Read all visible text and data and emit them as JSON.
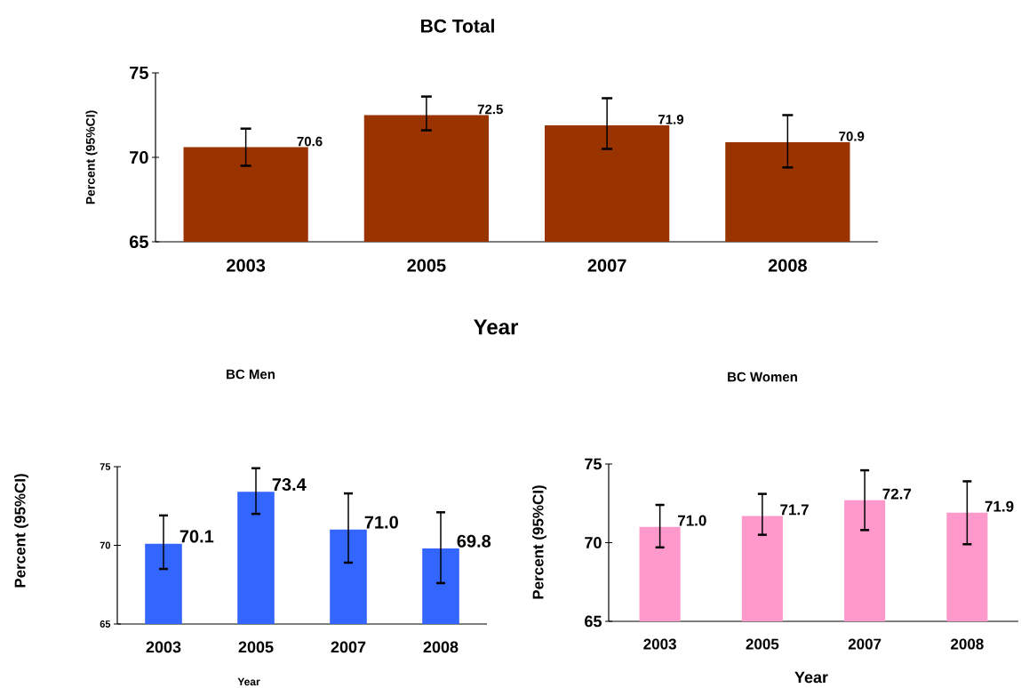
{
  "chart_data": [
    {
      "type": "bar",
      "title": "BC Total",
      "xlabel": "Year",
      "ylabel": "Percent (95%CI)",
      "categories": [
        "2003",
        "2005",
        "2007",
        "2008"
      ],
      "values": [
        70.6,
        72.5,
        71.9,
        70.9
      ],
      "value_labels": [
        "70.6",
        "72.5",
        "71.9",
        "70.9"
      ],
      "errors": [
        [
          69.5,
          71.7
        ],
        [
          71.6,
          73.6
        ],
        [
          70.5,
          73.5
        ],
        [
          69.4,
          72.5
        ]
      ],
      "color": "#993300",
      "ylim": [
        65,
        75
      ],
      "yticks": [
        65,
        70,
        75
      ]
    },
    {
      "type": "bar",
      "title": "BC Men",
      "xlabel": "Year",
      "ylabel": "Percent (95%CI)",
      "categories": [
        "2003",
        "2005",
        "2007",
        "2008"
      ],
      "values": [
        70.1,
        73.4,
        71.0,
        69.8
      ],
      "value_labels": [
        "70.1",
        "73.4",
        "71.0",
        "69.8"
      ],
      "errors": [
        [
          68.5,
          71.9
        ],
        [
          72.0,
          74.9
        ],
        [
          68.9,
          73.3
        ],
        [
          67.6,
          72.1
        ]
      ],
      "color": "#3366ff",
      "ylim": [
        65,
        75
      ],
      "yticks": [
        65,
        70,
        75
      ]
    },
    {
      "type": "bar",
      "title": "BC Women",
      "xlabel": "Year",
      "ylabel": "Percent (95%CI)",
      "categories": [
        "2003",
        "2005",
        "2007",
        "2008"
      ],
      "values": [
        71.0,
        71.7,
        72.7,
        71.9
      ],
      "value_labels": [
        "71.0",
        "71.7",
        "72.7",
        "71.9"
      ],
      "errors": [
        [
          69.7,
          72.4
        ],
        [
          70.5,
          73.1
        ],
        [
          70.8,
          74.6
        ],
        [
          69.9,
          73.9
        ]
      ],
      "color": "#ff99cc",
      "ylim": [
        65,
        75
      ],
      "yticks": [
        65,
        70,
        75
      ]
    }
  ]
}
